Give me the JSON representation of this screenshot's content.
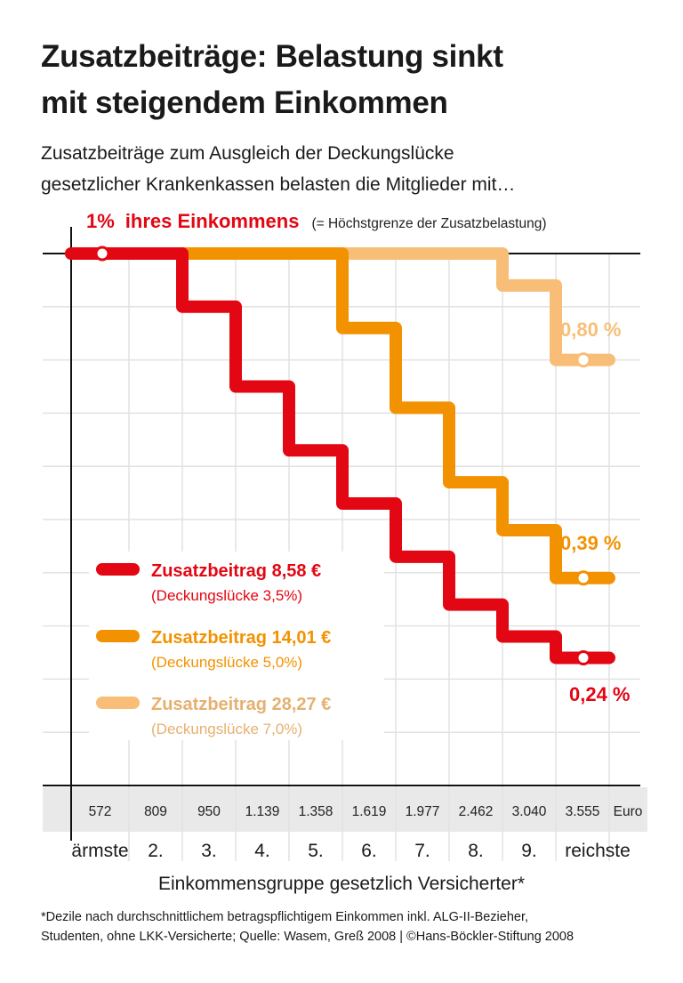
{
  "title_lines": [
    "Zusatzbeiträge: Belastung sinkt",
    "mit steigendem Einkommen"
  ],
  "subtitle_lines": [
    "Zusatzbeiträge zum Ausgleich der Deckungslücke",
    "gesetzlicher Krankenkassen belasten die Mitglieder mit…"
  ],
  "chart_data": {
    "type": "line",
    "step": true,
    "top_label_value": "1%",
    "top_label_text": "ihres Einkommens",
    "top_label_note": "(= Höchstgrenze der Zusatzbelastung)",
    "ylim": [
      0,
      1.0
    ],
    "y_unit": "% des Einkommens",
    "grid": true,
    "categories": [
      "ärmste",
      "2.",
      "3.",
      "4.",
      "5.",
      "6.",
      "7.",
      "8.",
      "9.",
      "reichste"
    ],
    "income_values": [
      "572",
      "809",
      "950",
      "1.139",
      "1.358",
      "1.619",
      "1.977",
      "2.462",
      "3.040",
      "3.555"
    ],
    "income_unit": "Euro",
    "xlabel": "Einkommensgruppe gesetzlich Versicherter*",
    "legend_position": "bottom-left",
    "series": [
      {
        "name": "Zusatzbeitrag 28,27 €",
        "note": "(Deckungslücke 7,0%)",
        "color": "#f8be78",
        "legend_text_color": "#e6b070",
        "values": [
          1,
          1,
          1,
          1,
          1,
          1,
          1,
          1,
          0.94,
          0.8
        ],
        "end_label": "0,80 %"
      },
      {
        "name": "Zusatzbeitrag 14,01 €",
        "note": "(Deckungslücke 5,0%)",
        "color": "#f39200",
        "legend_text_color": "#f39200",
        "values": [
          1,
          1,
          1,
          1,
          1,
          0.86,
          0.71,
          0.57,
          0.48,
          0.39
        ],
        "end_label": "0,39 %"
      },
      {
        "name": "Zusatzbeitrag 8,58 €",
        "note": "(Deckungslücke 3,5%)",
        "color": "#e30613",
        "legend_text_color": "#e30613",
        "values": [
          1,
          1,
          0.9,
          0.75,
          0.63,
          0.53,
          0.43,
          0.34,
          0.28,
          0.24
        ],
        "end_label": "0,24 %"
      }
    ]
  },
  "footnote_lines": [
    "*Dezile nach durchschnittlichem betragspflichtigem Einkommen inkl. ALG-II-Bezieher,",
    "Studenten, ohne LKK-Versicherte; Quelle: Wasem, Greß 2008 | ©Hans-Böckler-Stiftung 2008"
  ]
}
